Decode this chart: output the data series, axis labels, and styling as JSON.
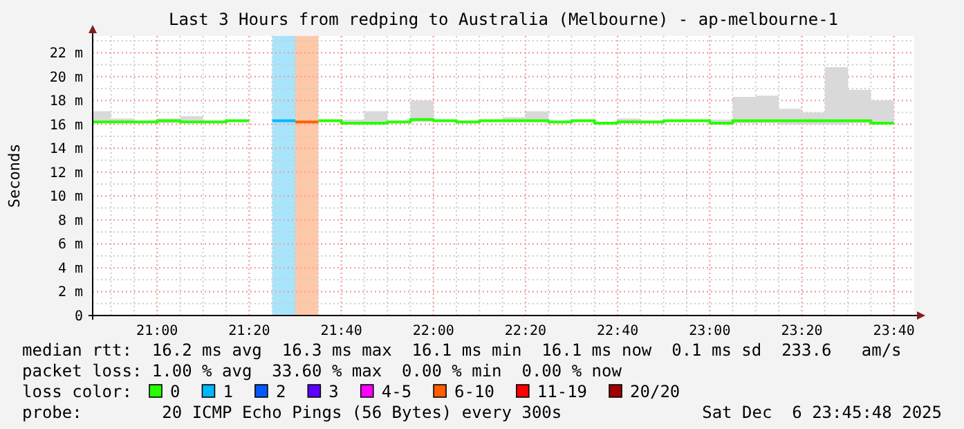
{
  "chart_data": {
    "type": "step",
    "title": "Last 3 Hours from redping to Australia (Melbourne) - ap-melbourne-1",
    "ylabel": "Seconds",
    "legend_title": "loss color:",
    "legend": "bottom",
    "grid": true,
    "xlim": [
      20.7667,
      23.74
    ],
    "xticks": [
      {
        "value": 21,
        "label": "21:00"
      },
      {
        "value": 21.3333,
        "label": "21:20"
      },
      {
        "value": 21.6667,
        "label": "21:40"
      },
      {
        "value": 22,
        "label": "22:00"
      },
      {
        "value": 22.3333,
        "label": "22:20"
      },
      {
        "value": 22.6667,
        "label": "22:40"
      },
      {
        "value": 23,
        "label": "23:00"
      },
      {
        "value": 23.3333,
        "label": "23:20"
      },
      {
        "value": 23.6667,
        "label": "23:40"
      }
    ],
    "ylim": [
      0,
      23.4
    ],
    "yticks": [
      0,
      {
        "value": 2,
        "label": "2 m"
      },
      {
        "value": 4,
        "label": "4 m"
      },
      {
        "value": 6,
        "label": "6 m"
      },
      {
        "value": 8,
        "label": "8 m"
      },
      {
        "value": 10,
        "label": "10 m"
      },
      {
        "value": 12,
        "label": "12 m"
      },
      {
        "value": 14,
        "label": "14 m"
      },
      {
        "value": 16,
        "label": "16 m"
      },
      {
        "value": 18,
        "label": "18 m"
      },
      {
        "value": 20,
        "label": "20 m"
      },
      {
        "value": 22,
        "label": "22 m"
      }
    ],
    "x": [
      20.7667,
      20.8333,
      20.9167,
      21.0,
      21.0833,
      21.1667,
      21.25,
      21.3333,
      21.4167,
      21.5,
      21.5833,
      21.6667,
      21.75,
      21.8333,
      21.9167,
      22.0,
      22.0833,
      22.1667,
      22.25,
      22.3333,
      22.4167,
      22.5,
      22.5833,
      22.6667,
      22.75,
      22.8333,
      22.9167,
      23.0,
      23.0833,
      23.1667,
      23.25,
      23.3333,
      23.4167,
      23.5,
      23.5833,
      23.6667
    ],
    "bands": [
      {
        "axis": "x",
        "from": 21.4167,
        "to": 21.5,
        "color": "#a8e4fb"
      },
      {
        "axis": "x",
        "from": 21.5,
        "to": 21.5833,
        "color": "#ffc8a8"
      }
    ],
    "series": [
      {
        "name": "0",
        "color": "#26ff00",
        "values": [
          16.2,
          16.2,
          16.2,
          16.3,
          16.2,
          16.2,
          16.3,
          16.3,
          null,
          null,
          16.3,
          16.1,
          16.1,
          16.2,
          16.4,
          16.3,
          16.2,
          16.3,
          16.3,
          16.3,
          16.2,
          16.3,
          16.1,
          16.2,
          16.2,
          16.3,
          16.3,
          16.1,
          16.3,
          16.3,
          16.3,
          16.3,
          16.3,
          16.3,
          16.1,
          16.1
        ],
        "lower": [
          16.1,
          16.1,
          16.1,
          16.1,
          16.1,
          16.1,
          16.2,
          16.2,
          null,
          null,
          16.2,
          16.0,
          16.0,
          16.1,
          16.2,
          16.2,
          16.1,
          16.2,
          16.2,
          16.2,
          16.1,
          16.2,
          16.0,
          16.1,
          16.1,
          16.2,
          16.2,
          16.0,
          16.1,
          16.1,
          16.0,
          16.0,
          16.0,
          16.1,
          16.0,
          16.0
        ],
        "upper": [
          17.1,
          16.5,
          16.3,
          16.5,
          16.7,
          16.3,
          16.4,
          16.4,
          null,
          null,
          16.4,
          16.4,
          17.1,
          16.3,
          18.0,
          16.4,
          16.3,
          16.4,
          16.6,
          17.1,
          16.2,
          16.4,
          16.2,
          16.5,
          16.3,
          16.3,
          16.3,
          16.4,
          18.3,
          18.4,
          17.3,
          17.0,
          20.8,
          18.9,
          18.0,
          18.0
        ]
      },
      {
        "name": "1",
        "color": "#00b8ff",
        "x": [
          21.4167,
          21.5
        ],
        "values": [
          16.3,
          16.3
        ]
      },
      {
        "name": "2",
        "color": "#0059ff",
        "values": [
          null,
          null,
          null,
          null,
          null,
          null,
          null,
          null,
          null,
          null,
          null,
          null,
          null,
          null,
          null,
          null,
          null,
          null,
          null,
          null,
          null,
          null,
          null,
          null,
          null,
          null,
          null,
          null,
          null,
          null,
          null,
          null,
          null,
          null,
          null,
          null
        ]
      },
      {
        "name": "3",
        "color": "#5e00ff",
        "values": [
          null,
          null,
          null,
          null,
          null,
          null,
          null,
          null,
          null,
          null,
          null,
          null,
          null,
          null,
          null,
          null,
          null,
          null,
          null,
          null,
          null,
          null,
          null,
          null,
          null,
          null,
          null,
          null,
          null,
          null,
          null,
          null,
          null,
          null,
          null,
          null
        ]
      },
      {
        "name": "4-5",
        "color": "#ff00ff",
        "values": [
          null,
          null,
          null,
          null,
          null,
          null,
          null,
          null,
          null,
          null,
          null,
          null,
          null,
          null,
          null,
          null,
          null,
          null,
          null,
          null,
          null,
          null,
          null,
          null,
          null,
          null,
          null,
          null,
          null,
          null,
          null,
          null,
          null,
          null,
          null,
          null
        ]
      },
      {
        "name": "6-10",
        "color": "#ff5e00",
        "x": [
          21.5,
          21.5833
        ],
        "values": [
          16.2,
          16.2
        ]
      },
      {
        "name": "11-19",
        "color": "#ff0000",
        "values": [
          null,
          null,
          null,
          null,
          null,
          null,
          null,
          null,
          null,
          null,
          null,
          null,
          null,
          null,
          null,
          null,
          null,
          null,
          null,
          null,
          null,
          null,
          null,
          null,
          null,
          null,
          null,
          null,
          null,
          null,
          null,
          null,
          null,
          null,
          null,
          null
        ]
      },
      {
        "name": "20/20",
        "color": "#a10000",
        "values": [
          null,
          null,
          null,
          null,
          null,
          null,
          null,
          null,
          null,
          null,
          null,
          null,
          null,
          null,
          null,
          null,
          null,
          null,
          null,
          null,
          null,
          null,
          null,
          null,
          null,
          null,
          null,
          null,
          null,
          null,
          null,
          null,
          null,
          null,
          null,
          null
        ]
      }
    ],
    "annotations": [
      "median rtt:  16.2 ms avg  16.3 ms max  16.1 ms min  16.1 ms now  0.1 ms sd  233.6   am/s",
      "packet loss: 1.00 % avg  33.60 % max  0.00 % min  0.00 % now",
      "probe:        20 ICMP Echo Pings (56 Bytes) every 300s",
      "Sat Dec  6 23:45:48 2025"
    ]
  }
}
